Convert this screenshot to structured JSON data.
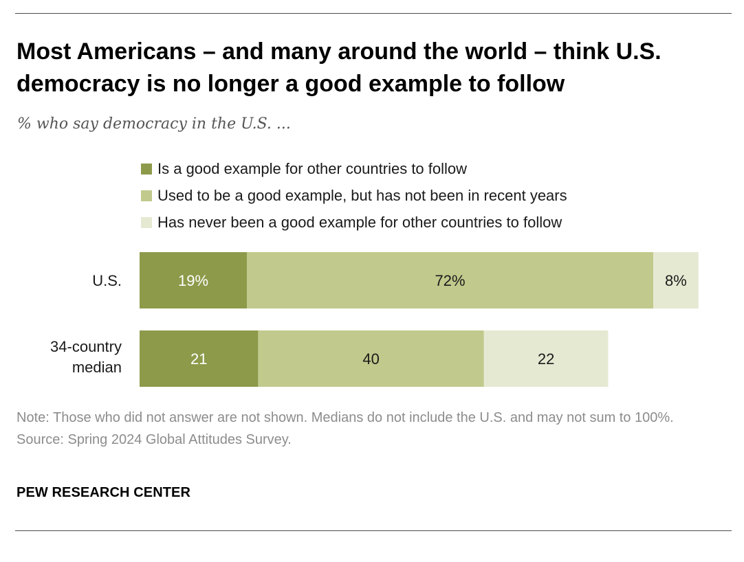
{
  "title": "Most Americans – and many around the world – think U.S. democracy is no longer a good example to follow",
  "subtitle": "% who say democracy in the U.S. ...",
  "colors": {
    "good": "#8c9a4a",
    "used_to_be": "#c1c98c",
    "never": "#e6e9d2"
  },
  "chart_data": {
    "type": "bar",
    "orientation": "horizontal-stacked",
    "categories": [
      "U.S.",
      "34-country median"
    ],
    "series": [
      {
        "name": "Is a good example for other countries to follow",
        "values": [
          19,
          21
        ],
        "labels": [
          "19%",
          "21"
        ],
        "color": "#8c9a4a",
        "label_color": "#ffffff"
      },
      {
        "name": "Used to be a good example, but has not been in recent years",
        "values": [
          72,
          40
        ],
        "labels": [
          "72%",
          "40"
        ],
        "color": "#c1c98c",
        "label_color": "#1a1a1a"
      },
      {
        "name": "Has never been a good example for other countries to follow",
        "values": [
          8,
          22
        ],
        "labels": [
          "8%",
          "22"
        ],
        "color": "#e6e9d2",
        "label_color": "#1a1a1a"
      }
    ],
    "xlim": [
      0,
      100
    ],
    "grid": false,
    "legend": "top"
  },
  "note": "Note: Those who did not answer are not shown. Medians do not include the U.S. and may not sum to 100%.",
  "source": "Source: Spring 2024 Global Attitudes Survey.",
  "brand": "PEW RESEARCH CENTER"
}
